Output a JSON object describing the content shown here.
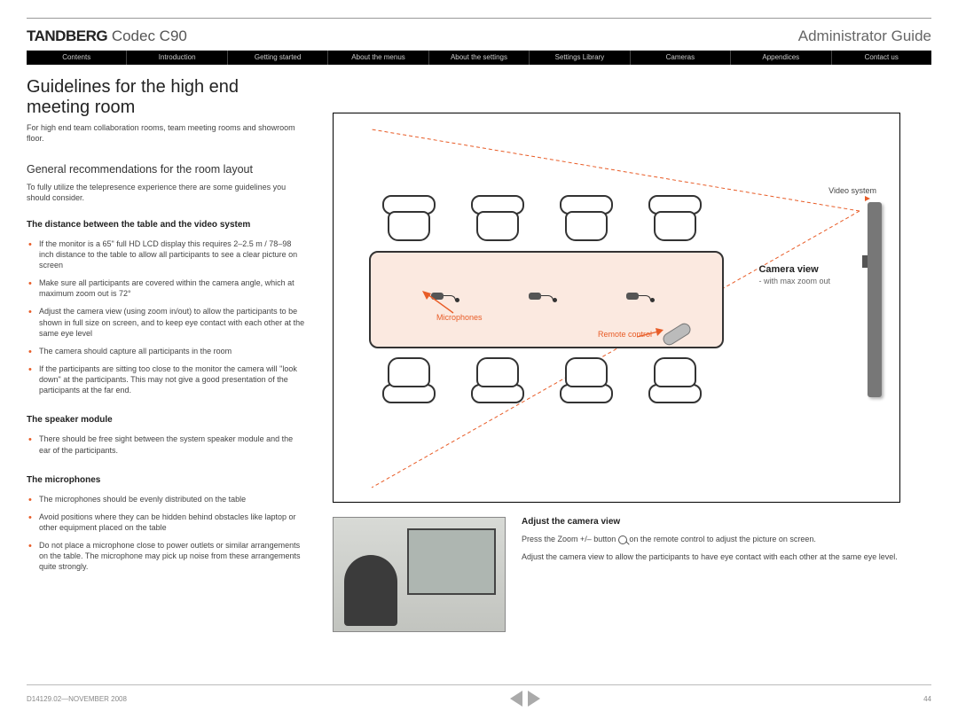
{
  "brand_bold": "TANDBERG",
  "brand_light": "Codec C90",
  "doc_title": "Administrator Guide",
  "tabs": [
    "Contents",
    "Introduction",
    "Getting started",
    "About the menus",
    "About the settings",
    "Settings Library",
    "Cameras",
    "Appendices",
    "Contact us"
  ],
  "h1": "Guidelines for the high end meeting room",
  "intro": "For high end team collaboration rooms, team meeting rooms and showroom floor.",
  "h2": "General recommendations for the room layout",
  "subintro": "To fully utilize the telepresence experience there are some guidelines you should consider.",
  "sec1_h": "The distance between the table and the video system",
  "sec1": [
    "If the monitor is a 65\" full HD LCD display this requires 2–2.5 m / 78–98 inch distance to the table to allow all participants to see a clear picture on screen",
    "Make sure all participants are covered within the camera angle, which at maximum zoom out is 72°",
    "Adjust the camera view (using zoom in/out) to allow the participants to be shown in full size on screen, and to keep eye contact with each other at the same eye level",
    "The camera should capture all participants in the room",
    "If the participants are sitting too close to the monitor the camera will \"look down\" at the participants. This may not give a good presentation of the participants at the far end."
  ],
  "sec2_h": "The speaker module",
  "sec2": [
    "There should be free sight between the system speaker module and the ear of the participants."
  ],
  "sec3_h": "The microphones",
  "sec3": [
    "The microphones should be evenly distributed on the table",
    "Avoid positions where they can be hidden behind obstacles like laptop or other equipment placed on the table",
    "Do not place a microphone close to power outlets or similar arrangements on the table. The microphone may pick up noise from these arrangements quite strongly."
  ],
  "diagram": {
    "video_system_label": "Video system",
    "camera_view_label": "Camera view",
    "camera_view_sub": "- with max zoom out",
    "microphones_label": "Microphones",
    "remote_label": "Remote control",
    "chair_top_x": [
      55,
      155,
      255,
      355
    ],
    "chair_bottom_x": [
      55,
      155,
      255,
      355
    ],
    "mic_x": [
      110,
      220,
      330
    ],
    "colors": {
      "accent": "#e85c27",
      "table_fill": "#fbe9e0",
      "stroke": "#333333"
    }
  },
  "adjust_h": "Adjust the camera view",
  "adjust_p1a": "Press the Zoom +/– button ",
  "adjust_p1b": " on the remote control to adjust the picture on screen.",
  "adjust_p2": "Adjust the camera view to allow the participants to have eye contact with each other at the same eye level.",
  "footer_left": "D14129.02—NOVEMBER 2008",
  "footer_page": "44"
}
